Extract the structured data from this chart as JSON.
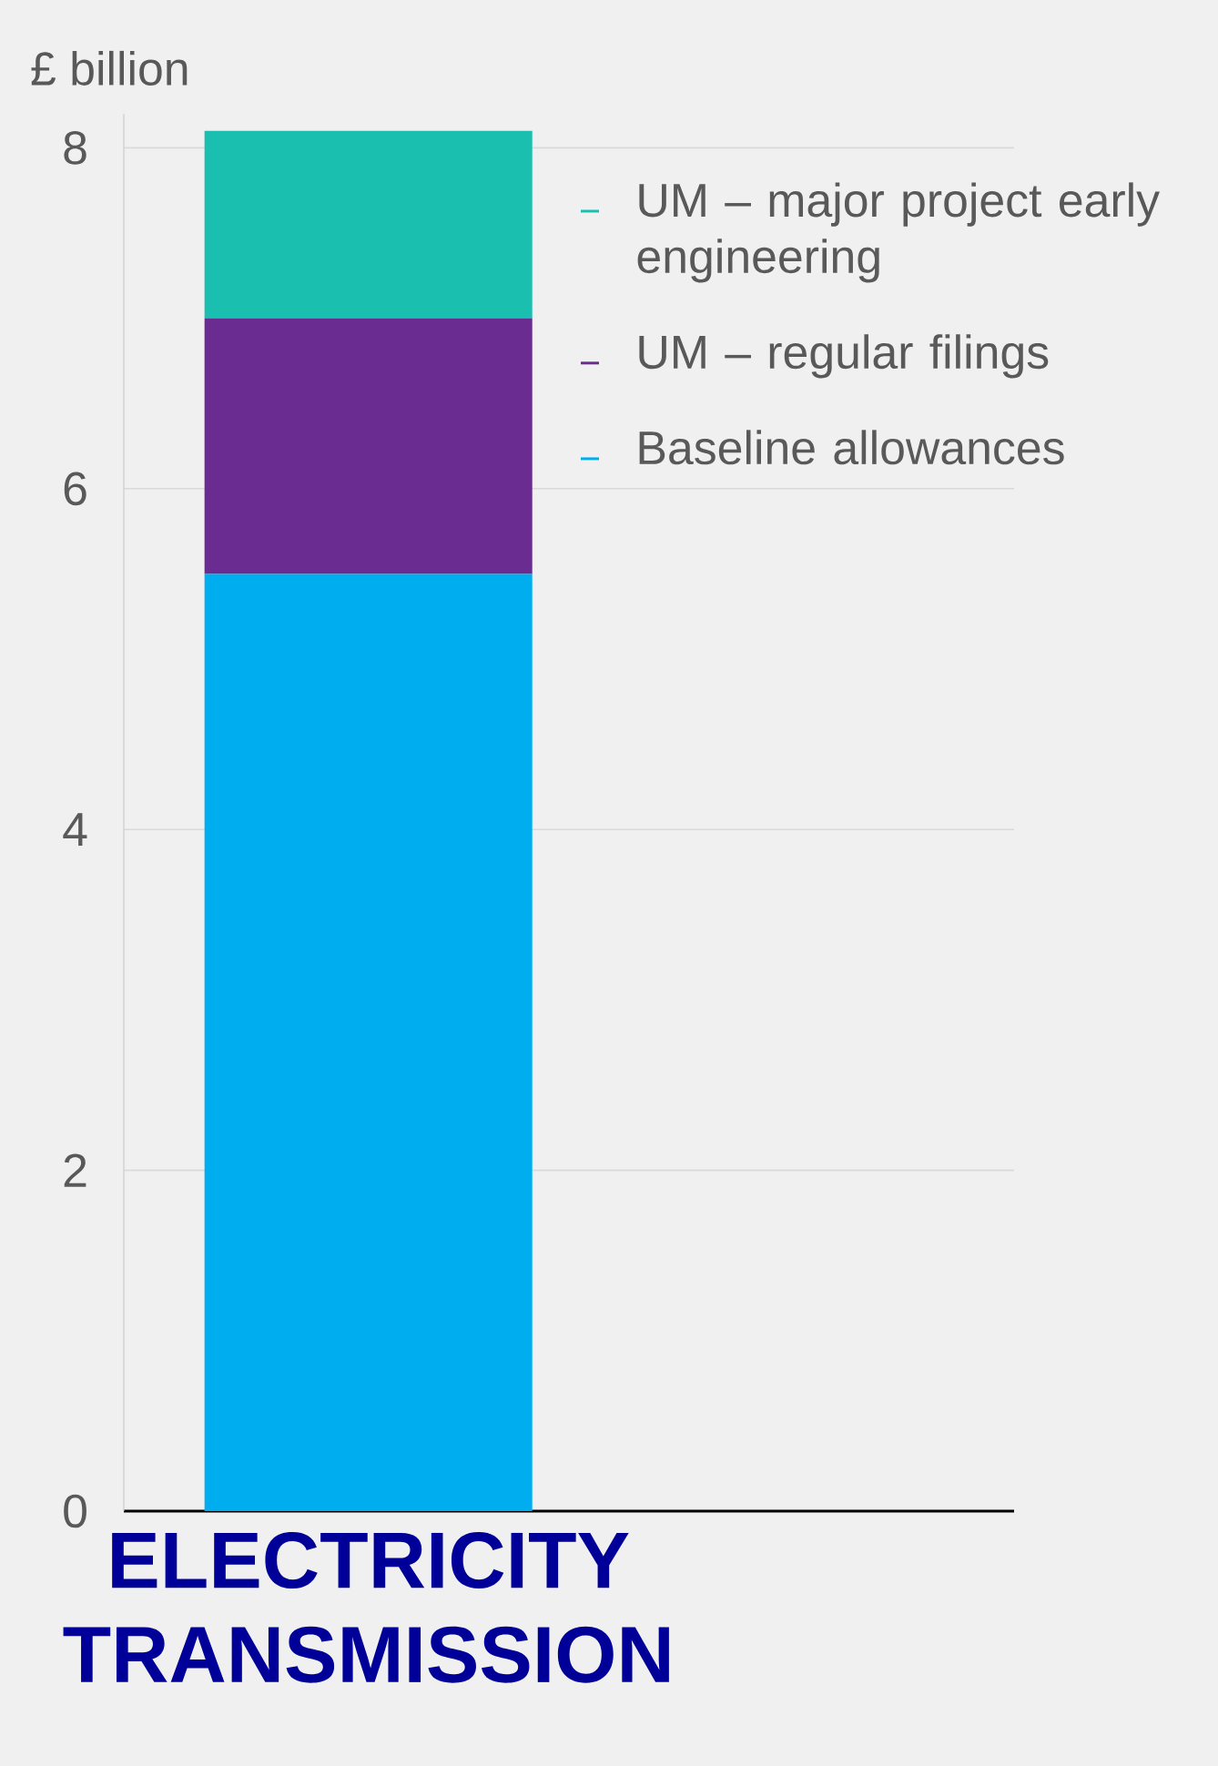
{
  "chart_data": {
    "type": "bar",
    "ylabel": "£ billion",
    "categories": [
      "ELECTRICITY TRANSMISSION"
    ],
    "stacked": true,
    "series": [
      {
        "name": "Baseline allowances",
        "color": "#00aeef",
        "values": [
          5.5
        ]
      },
      {
        "name": "UM – regular filings",
        "color": "#6a2c91",
        "values": [
          1.5
        ]
      },
      {
        "name": "UM – major project early engineering",
        "color": "#1bbfb0",
        "values": [
          1.1
        ]
      }
    ],
    "ylim": [
      0,
      8.2
    ],
    "yticks": [
      0,
      2,
      4,
      6,
      8
    ],
    "grid": "y",
    "legend": "top right"
  }
}
